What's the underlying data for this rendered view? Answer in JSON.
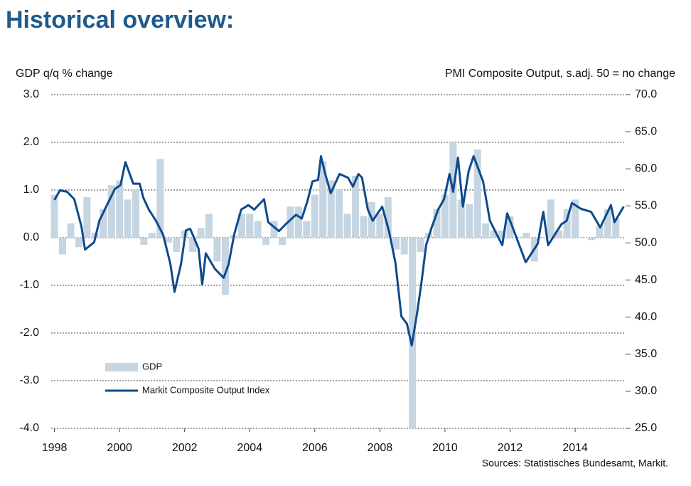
{
  "chart_data": {
    "type": "combo",
    "title": "Historical overview:",
    "y_label": "GDP q/q % change",
    "y2_label": "PMI Composite  Output, s.adj. 50 = no change",
    "source": "Sources: Statistisches Bundesamt, Markit.",
    "xlim": [
      1997.9,
      2015.55
    ],
    "xticks": [
      1998,
      2000,
      2002,
      2004,
      2006,
      2008,
      2010,
      2012,
      2014
    ],
    "ylim": [
      -4,
      3
    ],
    "yticks": [
      {
        "value": -4,
        "label": "-4.0"
      },
      {
        "value": -3,
        "label": "-3.0"
      },
      {
        "value": -2,
        "label": "-2.0"
      },
      {
        "value": -1,
        "label": "-1.0"
      },
      {
        "value": 0,
        "label": "0.0"
      },
      {
        "value": 1,
        "label": "1.0"
      },
      {
        "value": 2,
        "label": "2.0"
      },
      {
        "value": 3,
        "label": "3.0"
      }
    ],
    "y2lim": [
      25,
      70
    ],
    "y2ticks": [
      {
        "value": 25,
        "label": "25.0"
      },
      {
        "value": 30,
        "label": "30.0"
      },
      {
        "value": 35,
        "label": "35.0"
      },
      {
        "value": 40,
        "label": "40.0"
      },
      {
        "value": 45,
        "label": "45.0"
      },
      {
        "value": 50,
        "label": "50.0"
      },
      {
        "value": 55,
        "label": "55.0"
      },
      {
        "value": 60,
        "label": "60.0"
      },
      {
        "value": 65,
        "label": "65.0"
      },
      {
        "value": 70,
        "label": "70.0"
      }
    ],
    "grid": true,
    "legend": "lower left",
    "series": [
      {
        "name": "GDP",
        "type": "bar",
        "color": "#c5d5e2",
        "x": [
          1998,
          1998.25,
          1998.5,
          1998.75,
          1999,
          1999.25,
          1999.5,
          1999.75,
          2000,
          2000.25,
          2000.5,
          2000.75,
          2001,
          2001.25,
          2001.5,
          2001.75,
          2002,
          2002.25,
          2002.5,
          2002.75,
          2003,
          2003.25,
          2003.5,
          2003.75,
          2004,
          2004.25,
          2004.5,
          2004.75,
          2005,
          2005.25,
          2005.5,
          2005.75,
          2006,
          2006.25,
          2006.5,
          2006.75,
          2007,
          2007.25,
          2007.5,
          2007.75,
          2008,
          2008.25,
          2008.5,
          2008.75,
          2009,
          2009.25,
          2009.5,
          2009.75,
          2010,
          2010.25,
          2010.5,
          2010.75,
          2011,
          2011.25,
          2011.5,
          2011.75,
          2012,
          2012.25,
          2012.5,
          2012.75,
          2013,
          2013.25,
          2013.5,
          2013.75,
          2014,
          2014.25,
          2014.5,
          2014.75,
          2015,
          2015.25
        ],
        "values": [
          0.9,
          -0.35,
          0.3,
          -0.2,
          0.85,
          0.1,
          0.6,
          1.1,
          1.2,
          0.8,
          1.0,
          -0.15,
          0.1,
          1.65,
          -0.1,
          -0.3,
          0.15,
          -0.3,
          0.2,
          0.5,
          -0.5,
          -1.2,
          0.05,
          0.5,
          0.5,
          0.35,
          -0.15,
          0.35,
          -0.15,
          0.65,
          0.65,
          0.35,
          0.9,
          1.6,
          1.2,
          1.0,
          0.5,
          1.3,
          0.45,
          0.75,
          0.5,
          0.85,
          -0.25,
          -0.35,
          -4.0,
          -0.3,
          0.1,
          0.6,
          0.9,
          2.0,
          0.8,
          0.7,
          1.85,
          0.3,
          0.15,
          0.15,
          0.45,
          0.0,
          0.1,
          -0.5,
          0.0,
          0.8,
          0.15,
          0.6,
          0.8,
          0.0,
          -0.05,
          0.25,
          0.6,
          0.4
        ]
      },
      {
        "name": "Markit Composite Output Index",
        "type": "line",
        "axis": "y2",
        "color": "#0d4a8c",
        "x": [
          1998.0,
          1998.17,
          1998.39,
          1998.61,
          1998.83,
          1998.94,
          1999.22,
          1999.38,
          1999.59,
          1999.86,
          2000.03,
          2000.18,
          2000.42,
          2000.62,
          2000.73,
          2000.9,
          2001.12,
          2001.34,
          2001.56,
          2001.69,
          2001.89,
          2002.04,
          2002.17,
          2002.28,
          2002.43,
          2002.54,
          2002.65,
          2002.93,
          2003.2,
          2003.35,
          2003.52,
          2003.74,
          2003.96,
          2004.14,
          2004.44,
          2004.57,
          2004.9,
          2005.1,
          2005.42,
          2005.6,
          2005.77,
          2005.93,
          2006.1,
          2006.19,
          2006.32,
          2006.49,
          2006.76,
          2007.02,
          2007.17,
          2007.34,
          2007.45,
          2007.63,
          2007.78,
          2008.07,
          2008.28,
          2008.48,
          2008.66,
          2008.83,
          2008.98,
          2009.14,
          2009.27,
          2009.42,
          2009.59,
          2009.79,
          2009.97,
          2010.14,
          2010.25,
          2010.4,
          2010.55,
          2010.73,
          2010.88,
          2011.17,
          2011.38,
          2011.76,
          2011.91,
          2012.08,
          2012.48,
          2012.85,
          2013.02,
          2013.17,
          2013.57,
          2013.74,
          2013.9,
          2014.18,
          2014.49,
          2014.77,
          2015.1,
          2015.21,
          2015.49
        ],
        "values": [
          55.8,
          57.1,
          56.9,
          55.9,
          52.2,
          49.1,
          50.1,
          53.0,
          54.9,
          57.3,
          57.8,
          60.9,
          58.0,
          58.0,
          56.1,
          54.5,
          53.0,
          51.1,
          47.2,
          43.4,
          47.2,
          51.7,
          51.9,
          50.8,
          49.2,
          44.4,
          48.6,
          46.5,
          45.3,
          47.1,
          51.1,
          54.5,
          55.1,
          54.5,
          55.9,
          52.8,
          51.6,
          52.5,
          53.8,
          53.3,
          55.6,
          58.3,
          58.5,
          61.7,
          59.3,
          56.7,
          59.3,
          58.8,
          57.6,
          59.3,
          58.8,
          54.5,
          53.0,
          54.9,
          51.6,
          47.3,
          40.1,
          39.1,
          36.2,
          40.5,
          44.4,
          49.7,
          52.1,
          54.5,
          55.9,
          59.3,
          56.9,
          61.5,
          54.9,
          59.7,
          61.7,
          58.3,
          53.0,
          49.7,
          54.0,
          52.1,
          47.4,
          49.9,
          54.2,
          49.7,
          52.5,
          53.0,
          55.4,
          54.6,
          54.2,
          52.1,
          55.1,
          52.8,
          54.9
        ]
      }
    ]
  }
}
